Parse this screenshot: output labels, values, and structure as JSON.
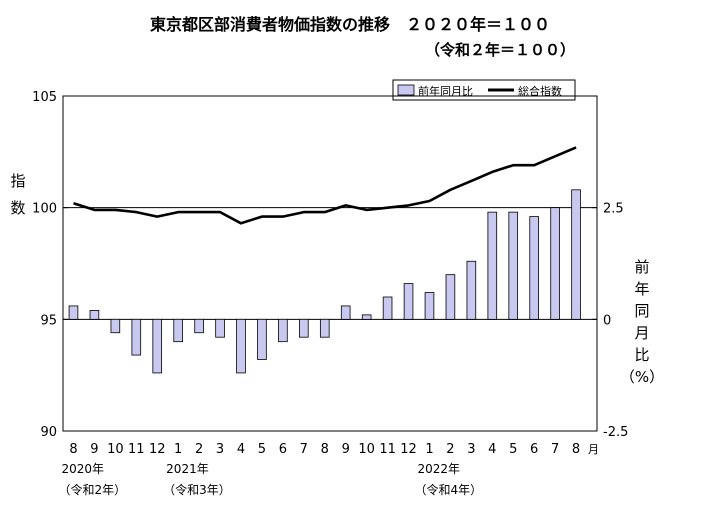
{
  "chart_data": {
    "type": "bar+line",
    "title": "東京都区部消費者物価指数の推移　２０２０年＝１００",
    "subtitle": "（令和２年＝１００）",
    "left_axis": {
      "label_chars": [
        "指",
        "数"
      ],
      "ylim": [
        90,
        105
      ],
      "ticks": [
        "105",
        "100",
        "95",
        "90"
      ],
      "tick_values": [
        105,
        100,
        95,
        90
      ]
    },
    "right_axis": {
      "label_chars": [
        "前",
        "年",
        "同",
        "月",
        "比",
        "（%）"
      ],
      "ylim": [
        -2.5,
        5.0
      ],
      "ticks": [
        "2.5",
        "0",
        "-2.5"
      ],
      "tick_values": [
        2.5,
        0,
        -2.5
      ]
    },
    "categories": [
      "8",
      "9",
      "10",
      "11",
      "12",
      "1",
      "2",
      "3",
      "4",
      "5",
      "6",
      "7",
      "8",
      "9",
      "10",
      "11",
      "12",
      "1",
      "2",
      "3",
      "4",
      "5",
      "6",
      "7",
      "8"
    ],
    "month_unit": "月",
    "year_labels": [
      {
        "index": 0,
        "year": "2020年",
        "era": "（令和2年）"
      },
      {
        "index": 5,
        "year": "2021年",
        "era": "（令和3年）"
      },
      {
        "index": 17,
        "year": "2022年",
        "era": "（令和4年）"
      }
    ],
    "series": [
      {
        "name": "前年同月比",
        "type": "bar",
        "axis": "right",
        "color": "#c8c8f0",
        "values": [
          0.3,
          0.2,
          -0.3,
          -0.8,
          -1.2,
          -0.5,
          -0.3,
          -0.4,
          -1.2,
          -0.9,
          -0.5,
          -0.4,
          -0.4,
          0.3,
          0.1,
          0.5,
          0.8,
          0.6,
          1.0,
          1.3,
          2.4,
          2.4,
          2.3,
          2.5,
          2.9
        ]
      },
      {
        "name": "総合指数",
        "type": "line",
        "axis": "left",
        "color": "#000000",
        "values": [
          100.2,
          99.9,
          99.9,
          99.8,
          99.6,
          99.8,
          99.8,
          99.8,
          99.3,
          99.6,
          99.6,
          99.8,
          99.8,
          100.1,
          99.9,
          100.0,
          100.1,
          100.3,
          100.8,
          101.2,
          101.6,
          101.9,
          101.9,
          102.3,
          102.7
        ]
      }
    ],
    "legend_position": "top-right"
  }
}
